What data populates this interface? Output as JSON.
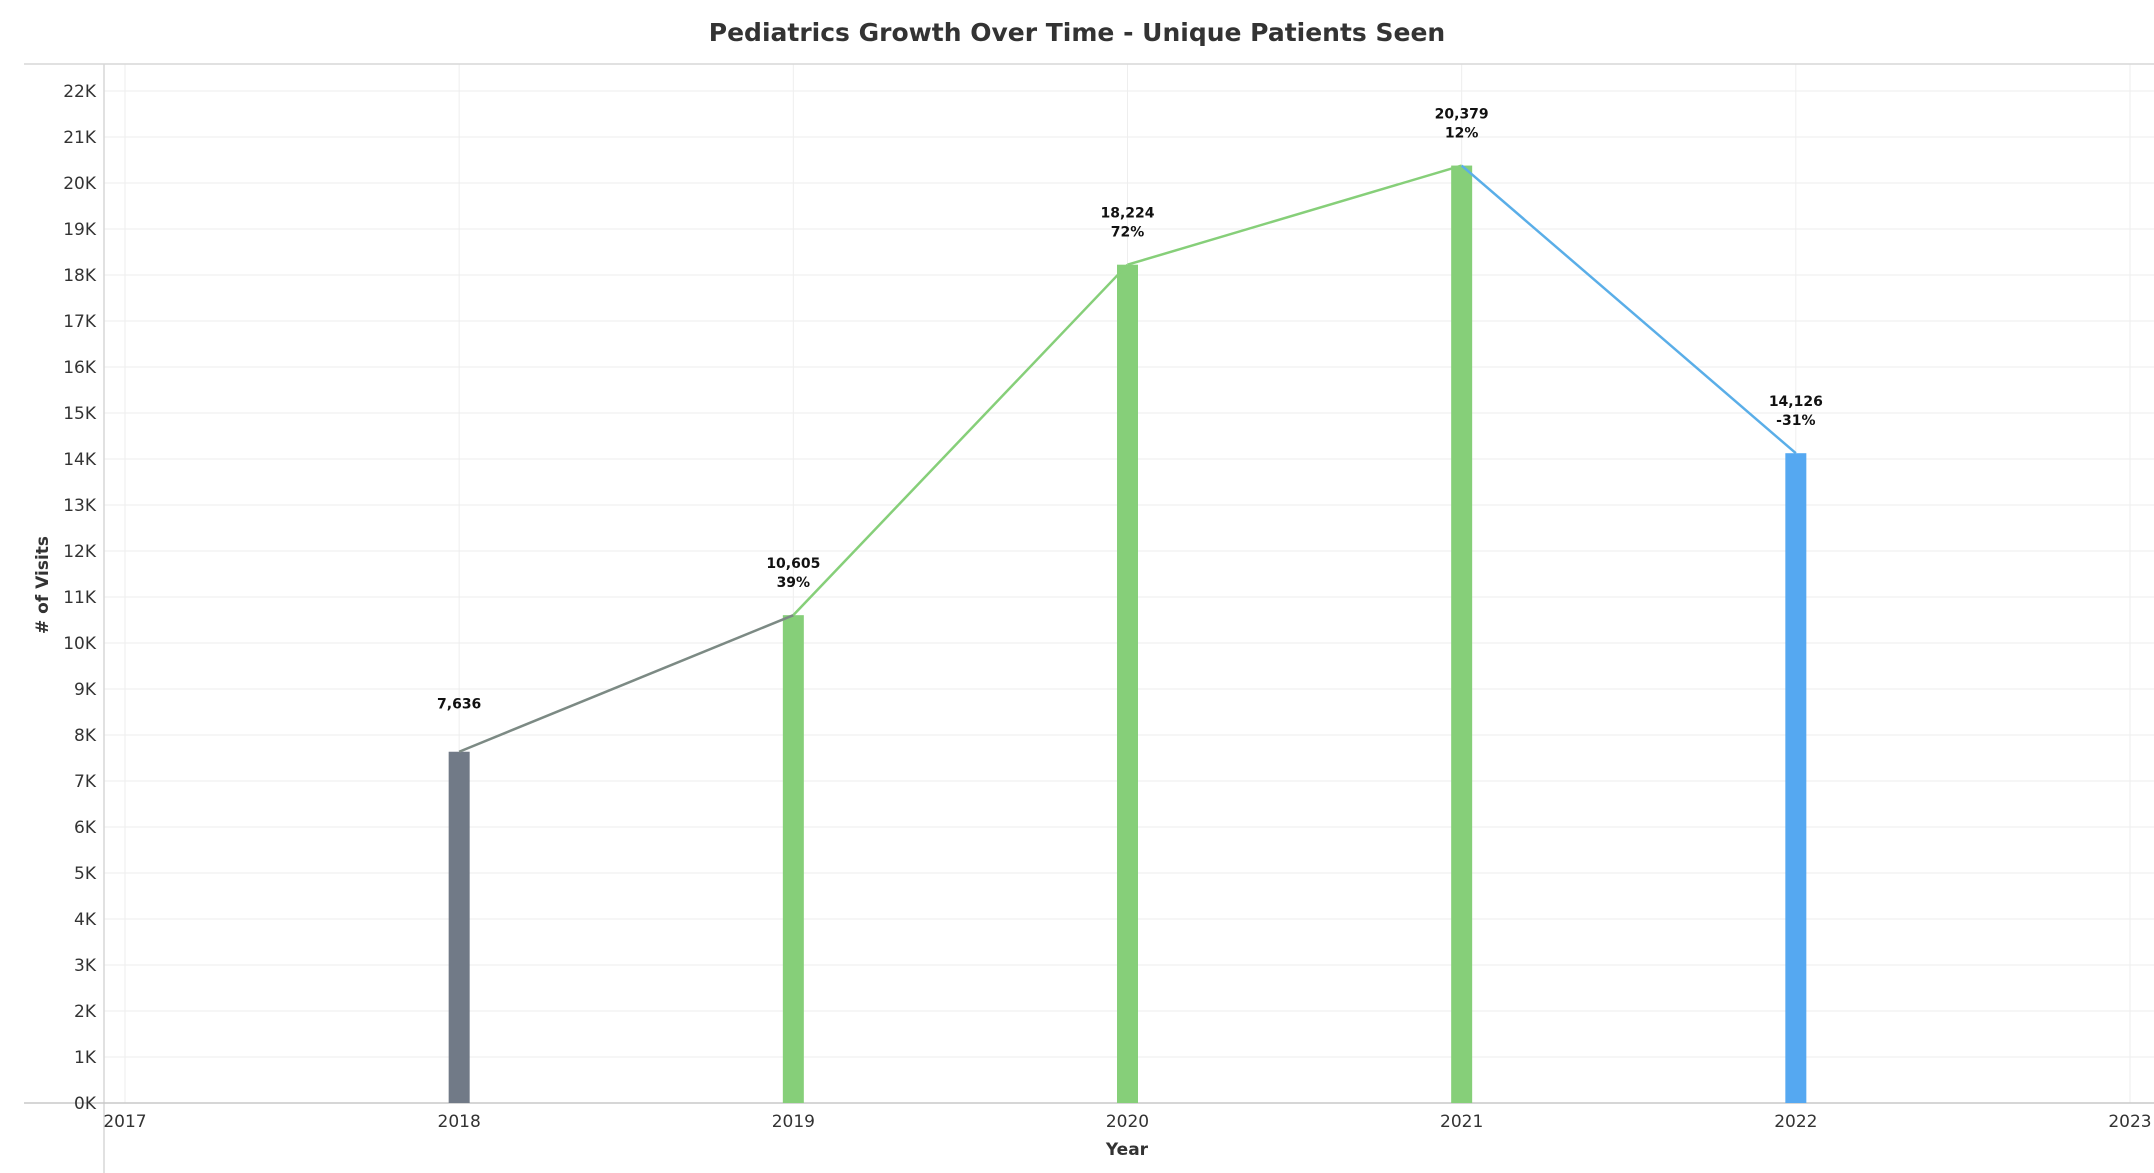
{
  "chart_data": {
    "type": "bar",
    "title": "Pediatrics Growth Over Time - Unique Patients Seen",
    "xlabel": "Year",
    "ylabel": "# of Visits",
    "x_ticks": [
      "2017",
      "2018",
      "2019",
      "2020",
      "2021",
      "2022",
      "2023"
    ],
    "xlim": [
      2017,
      2023
    ],
    "ylim": [
      0,
      22000
    ],
    "y_ticks": [
      "0K",
      "1K",
      "2K",
      "3K",
      "4K",
      "5K",
      "6K",
      "7K",
      "8K",
      "9K",
      "10K",
      "11K",
      "12K",
      "13K",
      "14K",
      "15K",
      "16K",
      "17K",
      "18K",
      "19K",
      "20K",
      "21K",
      "22K"
    ],
    "grid": true,
    "points": [
      {
        "year": 2018,
        "value": 7636,
        "label": "7,636",
        "change": "",
        "color": "#717a87"
      },
      {
        "year": 2019,
        "value": 10605,
        "label": "10,605",
        "change": "39%",
        "color": "#86cf79"
      },
      {
        "year": 2020,
        "value": 18224,
        "label": "18,224",
        "change": "72%",
        "color": "#86cf79"
      },
      {
        "year": 2021,
        "value": 20379,
        "label": "20,379",
        "change": "12%",
        "color": "#86cf79"
      },
      {
        "year": 2022,
        "value": 14126,
        "label": "14,126",
        "change": "-31%",
        "color": "#55a8f1"
      }
    ],
    "line_colors": {
      "neutral": "#7c8a84",
      "growth": "#86cf79",
      "decline": "#5aaee8"
    }
  }
}
